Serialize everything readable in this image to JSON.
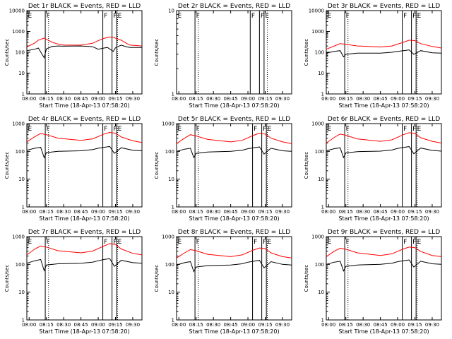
{
  "chart_data": [
    {
      "type": "line",
      "title": "Det 1r BLACK = Events, RED = LLD",
      "xlabel": "Start Time (18-Apr-13 07:58:20)",
      "ylabel": "Counts/sec",
      "yscale": "log",
      "ylim": [
        1,
        10000
      ],
      "yticks": [
        "1",
        "10",
        "100",
        "1000",
        "10000"
      ],
      "xticks": [
        "08:00",
        "08:15",
        "08:30",
        "08:45",
        "09:00",
        "09:15",
        "09:30"
      ],
      "series": [
        {
          "name": "BLACK = Events",
          "color": "#000000",
          "x": [
            "07:58",
            "08:05",
            "08:08",
            "08:13",
            "08:15",
            "08:20",
            "08:25",
            "08:30",
            "08:45",
            "08:55",
            "09:00",
            "09:05",
            "09:08",
            "09:13",
            "09:15",
            "09:20",
            "09:25",
            "09:28",
            "09:38"
          ],
          "values": [
            120,
            140,
            160,
            55,
            145,
            190,
            200,
            195,
            200,
            185,
            140,
            160,
            170,
            110,
            165,
            220,
            180,
            170,
            170
          ]
        },
        {
          "name": "RED = LLD",
          "color": "#ff0000",
          "x": [
            "07:58",
            "08:05",
            "08:08",
            "08:13",
            "08:15",
            "08:20",
            "08:25",
            "08:30",
            "08:45",
            "08:55",
            "09:00",
            "09:05",
            "09:10",
            "09:13",
            "09:20",
            "09:25",
            "09:28",
            "09:38"
          ],
          "values": [
            180,
            280,
            380,
            480,
            420,
            300,
            250,
            220,
            220,
            270,
            360,
            470,
            540,
            520,
            380,
            260,
            220,
            200
          ]
        }
      ],
      "markers": [
        {
          "label": "E",
          "x": "07:58"
        },
        {
          "label": "F",
          "x": "08:14"
        },
        {
          "label": "F",
          "x": "09:04"
        },
        {
          "label": "F",
          "x": "09:12"
        },
        {
          "label": "E",
          "x": "09:16"
        }
      ]
    },
    {
      "type": "line",
      "title": "Det 2r BLACK = Events, RED = LLD",
      "xlabel": "Start Time (18-Apr-13 07:58:20)",
      "ylabel": "Counts/sec",
      "yscale": "log",
      "ylim": [
        1,
        10
      ],
      "yticks": [
        "1",
        "10"
      ],
      "xticks": [
        "08:00",
        "08:15",
        "08:30",
        "08:45",
        "09:00",
        "09:15",
        "09:30"
      ],
      "series": [],
      "markers": [
        {
          "label": "E",
          "x": "07:58"
        },
        {
          "label": "F",
          "x": "08:14"
        },
        {
          "label": "F",
          "x": "09:02"
        },
        {
          "label": "F",
          "x": "09:10"
        },
        {
          "label": "E",
          "x": "09:14"
        }
      ]
    },
    {
      "type": "line",
      "title": "Det 3r BLACK = Events, RED = LLD",
      "xlabel": "Start Time (18-Apr-13 07:58:20)",
      "ylabel": "Counts/sec",
      "yscale": "log",
      "ylim": [
        1,
        10000
      ],
      "yticks": [
        "1",
        "10",
        "100",
        "1000",
        "10000"
      ],
      "xticks": [
        "08:00",
        "08:15",
        "08:30",
        "08:45",
        "09:00",
        "09:15",
        "09:30"
      ],
      "series": [
        {
          "name": "BLACK = Events",
          "color": "#000000",
          "x": [
            "07:58",
            "08:05",
            "08:10",
            "08:13",
            "08:15",
            "08:25",
            "08:45",
            "08:55",
            "09:00",
            "09:05",
            "09:10",
            "09:14",
            "09:20",
            "09:30",
            "09:38"
          ],
          "values": [
            90,
            110,
            120,
            60,
            80,
            90,
            90,
            100,
            110,
            120,
            130,
            80,
            120,
            95,
            90
          ]
        },
        {
          "name": "RED = LLD",
          "color": "#ff0000",
          "x": [
            "07:58",
            "08:05",
            "08:10",
            "08:15",
            "08:25",
            "08:45",
            "08:55",
            "09:05",
            "09:10",
            "09:15",
            "09:20",
            "09:30",
            "09:38"
          ],
          "values": [
            140,
            200,
            260,
            240,
            200,
            180,
            200,
            300,
            380,
            360,
            260,
            190,
            160
          ]
        }
      ],
      "markers": [
        {
          "label": "E",
          "x": "07:58"
        },
        {
          "label": "F",
          "x": "08:14"
        },
        {
          "label": "F",
          "x": "09:04"
        },
        {
          "label": "F",
          "x": "09:12"
        },
        {
          "label": "E",
          "x": "09:16"
        }
      ]
    },
    {
      "type": "line",
      "title": "Det 4r BLACK = Events, RED = LLD",
      "xlabel": "Start Time (18-Apr-13 07:58:20)",
      "ylabel": "Counts/sec",
      "yscale": "log",
      "ylim": [
        1,
        1000
      ],
      "yticks": [
        "1",
        "10",
        "100",
        "1000"
      ],
      "xticks": [
        "08:00",
        "08:15",
        "08:30",
        "08:45",
        "09:00",
        "09:15",
        "09:30"
      ],
      "series": [
        {
          "name": "BLACK = Events",
          "color": "#000000",
          "x": [
            "07:58",
            "08:05",
            "08:10",
            "08:13",
            "08:15",
            "08:25",
            "08:45",
            "08:55",
            "09:00",
            "09:05",
            "09:10",
            "09:14",
            "09:20",
            "09:30",
            "09:38"
          ],
          "values": [
            110,
            130,
            140,
            60,
            90,
            100,
            105,
            115,
            130,
            140,
            150,
            85,
            135,
            110,
            105
          ]
        },
        {
          "name": "RED = LLD",
          "color": "#ff0000",
          "x": [
            "07:58",
            "08:05",
            "08:10",
            "08:15",
            "08:25",
            "08:45",
            "08:55",
            "09:05",
            "09:10",
            "09:15",
            "09:20",
            "09:30",
            "09:38"
          ],
          "values": [
            220,
            340,
            440,
            400,
            300,
            250,
            280,
            420,
            480,
            450,
            330,
            240,
            210
          ]
        }
      ],
      "markers": [
        {
          "label": "E",
          "x": "07:58"
        },
        {
          "label": "F",
          "x": "08:14"
        },
        {
          "label": "F",
          "x": "09:04"
        },
        {
          "label": "F",
          "x": "09:12"
        },
        {
          "label": "E",
          "x": "09:16"
        }
      ]
    },
    {
      "type": "line",
      "title": "Det 5r BLACK = Events, RED = LLD",
      "xlabel": "Start Time (18-Apr-13 07:58:20)",
      "ylabel": "Counts/sec",
      "yscale": "log",
      "ylim": [
        1,
        1000
      ],
      "yticks": [
        "1",
        "10",
        "100",
        "1000"
      ],
      "xticks": [
        "08:00",
        "08:15",
        "08:30",
        "08:45",
        "09:00",
        "09:15",
        "09:30"
      ],
      "series": [
        {
          "name": "BLACK = Events",
          "color": "#000000",
          "x": [
            "07:58",
            "08:05",
            "08:10",
            "08:13",
            "08:15",
            "08:25",
            "08:45",
            "08:55",
            "09:00",
            "09:05",
            "09:10",
            "09:14",
            "09:20",
            "09:30",
            "09:38"
          ],
          "values": [
            100,
            120,
            130,
            60,
            85,
            95,
            100,
            110,
            125,
            135,
            145,
            80,
            130,
            105,
            100
          ]
        },
        {
          "name": "RED = LLD",
          "color": "#ff0000",
          "x": [
            "07:58",
            "08:05",
            "08:10",
            "08:15",
            "08:25",
            "08:45",
            "08:55",
            "09:05",
            "09:10",
            "09:15",
            "09:20",
            "09:30",
            "09:38"
          ],
          "values": [
            190,
            300,
            400,
            360,
            270,
            220,
            250,
            380,
            450,
            420,
            300,
            220,
            190
          ]
        }
      ],
      "markers": [
        {
          "label": "E",
          "x": "07:58"
        },
        {
          "label": "F",
          "x": "08:14"
        },
        {
          "label": "F",
          "x": "09:04"
        },
        {
          "label": "F",
          "x": "09:12"
        },
        {
          "label": "E",
          "x": "09:16"
        }
      ]
    },
    {
      "type": "line",
      "title": "Det 6r BLACK = Events, RED = LLD",
      "xlabel": "Start Time (18-Apr-13 07:58:20)",
      "ylabel": "Counts/sec",
      "yscale": "log",
      "ylim": [
        1,
        1000
      ],
      "yticks": [
        "1",
        "10",
        "100",
        "1000"
      ],
      "xticks": [
        "08:00",
        "08:15",
        "08:30",
        "08:45",
        "09:00",
        "09:15",
        "09:30"
      ],
      "series": [
        {
          "name": "BLACK = Events",
          "color": "#000000",
          "x": [
            "07:58",
            "08:05",
            "08:10",
            "08:13",
            "08:15",
            "08:25",
            "08:45",
            "08:55",
            "09:00",
            "09:05",
            "09:10",
            "09:14",
            "09:20",
            "09:30",
            "09:38"
          ],
          "values": [
            105,
            125,
            135,
            60,
            88,
            98,
            102,
            112,
            128,
            138,
            148,
            82,
            132,
            108,
            102
          ]
        },
        {
          "name": "RED = LLD",
          "color": "#ff0000",
          "x": [
            "07:58",
            "08:05",
            "08:10",
            "08:15",
            "08:25",
            "08:45",
            "08:55",
            "09:05",
            "09:10",
            "09:15",
            "09:20",
            "09:30",
            "09:38"
          ],
          "values": [
            200,
            320,
            420,
            380,
            280,
            230,
            260,
            400,
            470,
            440,
            310,
            230,
            200
          ]
        }
      ],
      "markers": [
        {
          "label": "E",
          "x": "07:58"
        },
        {
          "label": "F",
          "x": "08:14"
        },
        {
          "label": "F",
          "x": "09:04"
        },
        {
          "label": "F",
          "x": "09:12"
        },
        {
          "label": "E",
          "x": "09:16"
        }
      ]
    },
    {
      "type": "line",
      "title": "Det 7r BLACK = Events, RED = LLD",
      "xlabel": "Start Time (18-Apr-13 07:58:20)",
      "ylabel": "Counts/sec",
      "yscale": "log",
      "ylim": [
        1,
        1000
      ],
      "yticks": [
        "1",
        "10",
        "100",
        "1000"
      ],
      "xticks": [
        "08:00",
        "08:15",
        "08:30",
        "08:45",
        "09:00",
        "09:15",
        "09:30"
      ],
      "series": [
        {
          "name": "BLACK = Events",
          "color": "#000000",
          "x": [
            "07:58",
            "08:05",
            "08:10",
            "08:13",
            "08:15",
            "08:25",
            "08:45",
            "08:55",
            "09:00",
            "09:05",
            "09:10",
            "09:14",
            "09:20",
            "09:30",
            "09:38"
          ],
          "values": [
            110,
            135,
            150,
            60,
            95,
            105,
            110,
            120,
            135,
            150,
            160,
            85,
            140,
            115,
            110
          ]
        },
        {
          "name": "RED = LLD",
          "color": "#ff0000",
          "x": [
            "07:58",
            "08:05",
            "08:10",
            "08:15",
            "08:25",
            "08:45",
            "08:55",
            "09:05",
            "09:10",
            "09:15",
            "09:20",
            "09:30",
            "09:38"
          ],
          "values": [
            220,
            360,
            460,
            420,
            310,
            260,
            300,
            460,
            560,
            520,
            360,
            250,
            220
          ]
        }
      ],
      "markers": [
        {
          "label": "E",
          "x": "07:58"
        },
        {
          "label": "F",
          "x": "08:14"
        },
        {
          "label": "F",
          "x": "09:04"
        },
        {
          "label": "F",
          "x": "09:12"
        },
        {
          "label": "E",
          "x": "09:16"
        }
      ]
    },
    {
      "type": "line",
      "title": "Det 8r BLACK = Events, RED = LLD",
      "xlabel": "Start Time (18-Apr-13 07:58:20)",
      "ylabel": "Counts/sec",
      "yscale": "log",
      "ylim": [
        1,
        1000
      ],
      "yticks": [
        "1",
        "10",
        "100",
        "1000"
      ],
      "xticks": [
        "08:00",
        "08:15",
        "08:30",
        "08:45",
        "09:00",
        "09:15",
        "09:30"
      ],
      "series": [
        {
          "name": "BLACK = Events",
          "color": "#000000",
          "x": [
            "07:58",
            "08:05",
            "08:10",
            "08:13",
            "08:15",
            "08:25",
            "08:45",
            "08:55",
            "09:00",
            "09:05",
            "09:10",
            "09:14",
            "09:20",
            "09:30",
            "09:38"
          ],
          "values": [
            95,
            115,
            125,
            55,
            80,
            90,
            95,
            105,
            120,
            130,
            140,
            75,
            125,
            100,
            95
          ]
        },
        {
          "name": "RED = LLD",
          "color": "#ff0000",
          "x": [
            "07:58",
            "08:05",
            "08:10",
            "08:15",
            "08:25",
            "08:45",
            "08:55",
            "09:05",
            "09:10",
            "09:15",
            "09:20",
            "09:30",
            "09:38"
          ],
          "values": [
            170,
            260,
            340,
            310,
            230,
            190,
            220,
            330,
            390,
            370,
            260,
            190,
            170
          ]
        }
      ],
      "markers": [
        {
          "label": "E",
          "x": "07:58"
        },
        {
          "label": "F",
          "x": "08:14"
        },
        {
          "label": "F",
          "x": "09:04"
        },
        {
          "label": "F",
          "x": "09:12"
        },
        {
          "label": "E",
          "x": "09:16"
        }
      ]
    },
    {
      "type": "line",
      "title": "Det 9r BLACK = Events, RED = LLD",
      "xlabel": "Start Time (18-Apr-13 07:58:20)",
      "ylabel": "Counts/sec",
      "yscale": "log",
      "ylim": [
        1,
        1000
      ],
      "yticks": [
        "1",
        "10",
        "100",
        "1000"
      ],
      "xticks": [
        "08:00",
        "08:15",
        "08:30",
        "08:45",
        "09:00",
        "09:15",
        "09:30"
      ],
      "series": [
        {
          "name": "BLACK = Events",
          "color": "#000000",
          "x": [
            "07:58",
            "08:05",
            "08:10",
            "08:13",
            "08:15",
            "08:25",
            "08:45",
            "08:55",
            "09:00",
            "09:05",
            "09:10",
            "09:14",
            "09:20",
            "09:30",
            "09:38"
          ],
          "values": [
            100,
            120,
            130,
            58,
            85,
            95,
            100,
            110,
            125,
            135,
            145,
            80,
            130,
            105,
            100
          ]
        },
        {
          "name": "RED = LLD",
          "color": "#ff0000",
          "x": [
            "07:58",
            "08:05",
            "08:10",
            "08:15",
            "08:25",
            "08:45",
            "08:55",
            "09:05",
            "09:10",
            "09:15",
            "09:20",
            "09:30",
            "09:38"
          ],
          "values": [
            190,
            300,
            380,
            350,
            260,
            210,
            240,
            360,
            420,
            400,
            290,
            210,
            190
          ]
        }
      ],
      "markers": [
        {
          "label": "E",
          "x": "07:58"
        },
        {
          "label": "F",
          "x": "08:14"
        },
        {
          "label": "F",
          "x": "09:04"
        },
        {
          "label": "F",
          "x": "09:12"
        },
        {
          "label": "E",
          "x": "09:16"
        }
      ]
    }
  ],
  "dotted_marker_times": [
    "08:15",
    "09:15"
  ]
}
